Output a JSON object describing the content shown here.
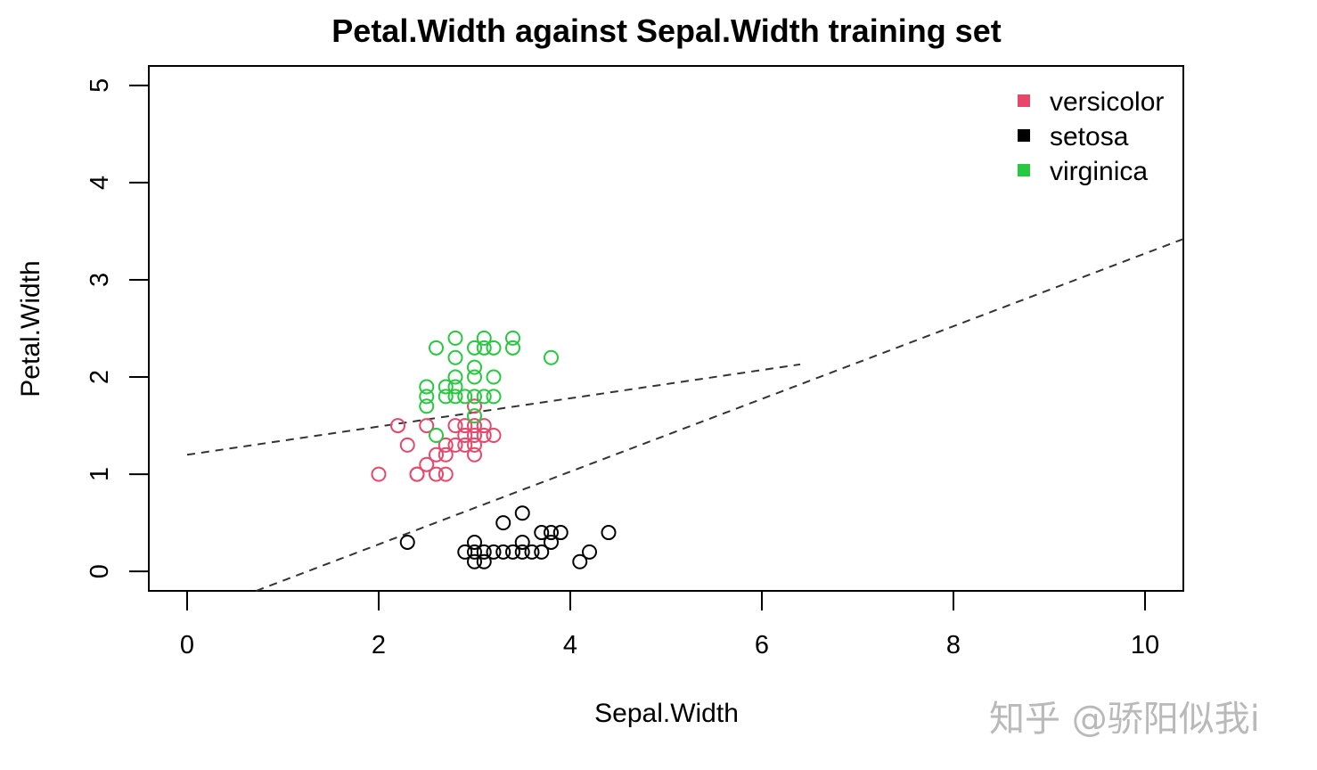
{
  "chart_data": {
    "type": "scatter",
    "title": "Petal.Width against Sepal.Width training set",
    "xlabel": "Sepal.Width",
    "ylabel": "Petal.Width",
    "xlim": [
      -0.4,
      10.4
    ],
    "ylim": [
      -0.2,
      5.2
    ],
    "xticks": [
      0,
      2,
      4,
      6,
      8,
      10
    ],
    "yticks": [
      0,
      1,
      2,
      3,
      4,
      5
    ],
    "grid": false,
    "legend_position": "top-right",
    "series": [
      {
        "name": "versicolor",
        "color": "#e5486b",
        "marker": "open-circle",
        "points": [
          [
            2.0,
            1.0
          ],
          [
            2.2,
            1.5
          ],
          [
            2.3,
            1.3
          ],
          [
            2.4,
            1.0
          ],
          [
            2.4,
            1.0
          ],
          [
            2.5,
            1.1
          ],
          [
            2.5,
            1.5
          ],
          [
            2.6,
            1.2
          ],
          [
            2.6,
            1.0
          ],
          [
            2.7,
            1.0
          ],
          [
            2.7,
            1.2
          ],
          [
            2.7,
            1.3
          ],
          [
            2.8,
            1.3
          ],
          [
            2.8,
            1.5
          ],
          [
            2.9,
            1.3
          ],
          [
            2.9,
            1.4
          ],
          [
            2.9,
            1.5
          ],
          [
            3.0,
            1.2
          ],
          [
            3.0,
            1.3
          ],
          [
            3.0,
            1.4
          ],
          [
            3.0,
            1.5
          ],
          [
            3.0,
            1.7
          ],
          [
            3.1,
            1.4
          ],
          [
            3.1,
            1.5
          ],
          [
            3.2,
            1.4
          ]
        ]
      },
      {
        "name": "setosa",
        "color": "#000000",
        "marker": "open-circle",
        "points": [
          [
            2.3,
            0.3
          ],
          [
            2.9,
            0.2
          ],
          [
            3.0,
            0.1
          ],
          [
            3.0,
            0.2
          ],
          [
            3.0,
            0.3
          ],
          [
            3.1,
            0.1
          ],
          [
            3.1,
            0.2
          ],
          [
            3.2,
            0.2
          ],
          [
            3.3,
            0.2
          ],
          [
            3.3,
            0.5
          ],
          [
            3.4,
            0.2
          ],
          [
            3.5,
            0.2
          ],
          [
            3.5,
            0.3
          ],
          [
            3.5,
            0.6
          ],
          [
            3.6,
            0.2
          ],
          [
            3.7,
            0.2
          ],
          [
            3.7,
            0.4
          ],
          [
            3.8,
            0.3
          ],
          [
            3.8,
            0.4
          ],
          [
            3.9,
            0.4
          ],
          [
            4.1,
            0.1
          ],
          [
            4.2,
            0.2
          ],
          [
            4.4,
            0.4
          ]
        ]
      },
      {
        "name": "virginica",
        "color": "#28c840",
        "marker": "open-circle",
        "points": [
          [
            2.5,
            1.7
          ],
          [
            2.5,
            1.8
          ],
          [
            2.5,
            1.9
          ],
          [
            2.6,
            1.4
          ],
          [
            2.6,
            2.3
          ],
          [
            2.7,
            1.8
          ],
          [
            2.7,
            1.9
          ],
          [
            2.8,
            1.8
          ],
          [
            2.8,
            1.9
          ],
          [
            2.8,
            2.0
          ],
          [
            2.8,
            2.2
          ],
          [
            2.8,
            2.4
          ],
          [
            2.9,
            1.8
          ],
          [
            3.0,
            1.6
          ],
          [
            3.0,
            1.8
          ],
          [
            3.0,
            2.0
          ],
          [
            3.0,
            2.1
          ],
          [
            3.0,
            2.3
          ],
          [
            3.1,
            1.8
          ],
          [
            3.1,
            2.3
          ],
          [
            3.1,
            2.4
          ],
          [
            3.2,
            1.8
          ],
          [
            3.2,
            2.0
          ],
          [
            3.2,
            2.3
          ],
          [
            3.4,
            2.3
          ],
          [
            3.4,
            2.4
          ],
          [
            3.8,
            2.2
          ]
        ]
      }
    ],
    "lines": [
      {
        "style": "dashed",
        "color": "#333333",
        "from": [
          0,
          1.2
        ],
        "to": [
          6.4,
          2.13
        ]
      },
      {
        "style": "dashed",
        "color": "#333333",
        "from": [
          0.72,
          -0.2
        ],
        "to": [
          10.4,
          3.42
        ]
      }
    ]
  },
  "watermark": "知乎 @骄阳似我i"
}
